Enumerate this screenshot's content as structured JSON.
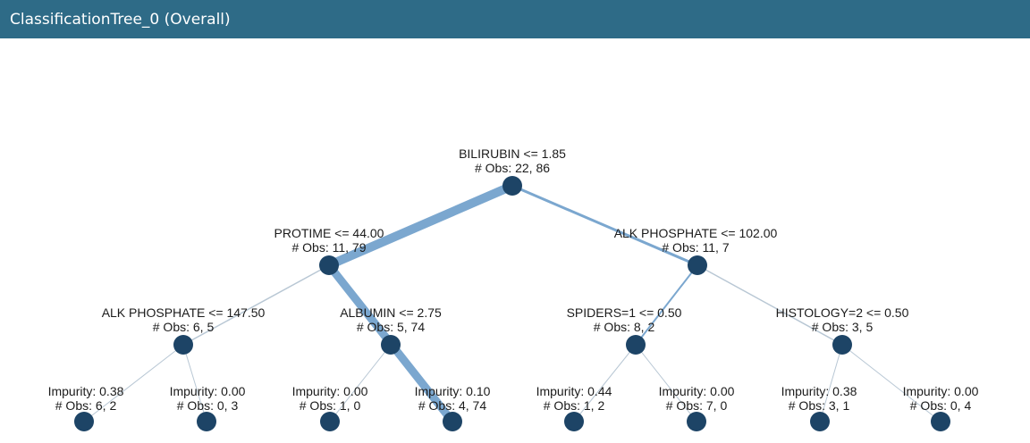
{
  "window": {
    "title": "ClassificationTree_0 (Overall)"
  },
  "colors": {
    "header_bg": "#2e6b87",
    "node": "#1d4466",
    "edge": "#7ba7cf"
  },
  "tree": {
    "root": {
      "line1": "BILIRUBIN <= 1.85",
      "line2": "# Obs: 22, 86"
    },
    "n_protime": {
      "line1": "PROTIME <= 44.00",
      "line2": "# Obs: 11, 79"
    },
    "n_alk102": {
      "line1": "ALK PHOSPHATE <= 102.00",
      "line2": "# Obs: 11, 7"
    },
    "n_alk147": {
      "line1": "ALK PHOSPHATE <= 147.50",
      "line2": "# Obs: 6, 5"
    },
    "n_albumin": {
      "line1": "ALBUMIN <= 2.75",
      "line2": "# Obs: 5, 74"
    },
    "n_spiders": {
      "line1": "SPIDERS=1 <= 0.50",
      "line2": "# Obs: 8, 2"
    },
    "n_histology": {
      "line1": "HISTOLOGY=2 <= 0.50",
      "line2": "# Obs: 3, 5"
    },
    "leaf1": {
      "line1": "Impurity: 0.38",
      "line2": "# Obs: 6, 2"
    },
    "leaf2": {
      "line1": "Impurity: 0.00",
      "line2": "# Obs: 0, 3"
    },
    "leaf3": {
      "line1": "Impurity: 0.00",
      "line2": "# Obs: 1, 0"
    },
    "leaf4": {
      "line1": "Impurity: 0.10",
      "line2": "# Obs: 4, 74"
    },
    "leaf5": {
      "line1": "Impurity: 0.44",
      "line2": "# Obs: 1, 2"
    },
    "leaf6": {
      "line1": "Impurity: 0.00",
      "line2": "# Obs: 7, 0"
    },
    "leaf7": {
      "line1": "Impurity: 0.38",
      "line2": "# Obs: 3, 1"
    },
    "leaf8": {
      "line1": "Impurity: 0.00",
      "line2": "# Obs: 0, 4"
    }
  }
}
